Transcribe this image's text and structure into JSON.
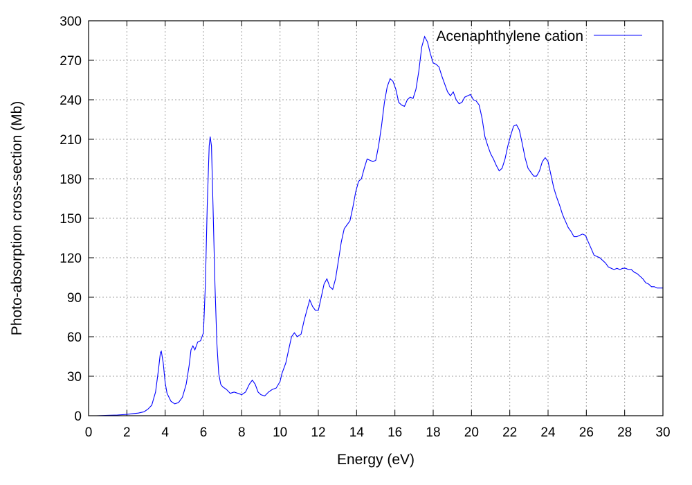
{
  "chart_data": {
    "type": "line",
    "title": "",
    "xlabel": "Energy (eV)",
    "ylabel": "Photo-absorption cross-section (Mb)",
    "xlim": [
      0,
      30
    ],
    "ylim": [
      0,
      300
    ],
    "x_ticks": [
      "0",
      "2",
      "4",
      "6",
      "8",
      "10",
      "12",
      "14",
      "16",
      "18",
      "20",
      "22",
      "24",
      "26",
      "28",
      "30"
    ],
    "y_ticks": [
      "0",
      "30",
      "60",
      "90",
      "120",
      "150",
      "180",
      "210",
      "240",
      "270",
      "300"
    ],
    "grid": true,
    "legend_position": "top-right",
    "series": [
      {
        "name": "Acenaphthylene cation",
        "color": "#0000ff",
        "points": [
          [
            0.4,
            0
          ],
          [
            1.0,
            0.3
          ],
          [
            1.5,
            0.5
          ],
          [
            2.0,
            1
          ],
          [
            2.3,
            1.5
          ],
          [
            2.6,
            2
          ],
          [
            2.9,
            3
          ],
          [
            3.1,
            5
          ],
          [
            3.3,
            8
          ],
          [
            3.5,
            18
          ],
          [
            3.65,
            35
          ],
          [
            3.75,
            48
          ],
          [
            3.8,
            49
          ],
          [
            3.9,
            40
          ],
          [
            4.0,
            25
          ],
          [
            4.1,
            17
          ],
          [
            4.3,
            11
          ],
          [
            4.5,
            9
          ],
          [
            4.7,
            10
          ],
          [
            4.9,
            14
          ],
          [
            5.1,
            24
          ],
          [
            5.25,
            38
          ],
          [
            5.35,
            50
          ],
          [
            5.45,
            53
          ],
          [
            5.55,
            50
          ],
          [
            5.7,
            56
          ],
          [
            5.85,
            57
          ],
          [
            6.0,
            63
          ],
          [
            6.1,
            100
          ],
          [
            6.2,
            160
          ],
          [
            6.3,
            205
          ],
          [
            6.35,
            212
          ],
          [
            6.42,
            205
          ],
          [
            6.5,
            160
          ],
          [
            6.6,
            100
          ],
          [
            6.7,
            55
          ],
          [
            6.8,
            32
          ],
          [
            6.9,
            24
          ],
          [
            7.0,
            22
          ],
          [
            7.2,
            20
          ],
          [
            7.4,
            17
          ],
          [
            7.6,
            18
          ],
          [
            7.8,
            17
          ],
          [
            8.0,
            16
          ],
          [
            8.2,
            18
          ],
          [
            8.4,
            24
          ],
          [
            8.55,
            27
          ],
          [
            8.7,
            24
          ],
          [
            8.85,
            18
          ],
          [
            9.0,
            16
          ],
          [
            9.2,
            15
          ],
          [
            9.4,
            18
          ],
          [
            9.6,
            20
          ],
          [
            9.8,
            21
          ],
          [
            10.0,
            26
          ],
          [
            10.1,
            32
          ],
          [
            10.3,
            40
          ],
          [
            10.45,
            50
          ],
          [
            10.6,
            60
          ],
          [
            10.75,
            63
          ],
          [
            10.9,
            60
          ],
          [
            11.1,
            62
          ],
          [
            11.25,
            72
          ],
          [
            11.4,
            80
          ],
          [
            11.55,
            88
          ],
          [
            11.7,
            83
          ],
          [
            11.85,
            80
          ],
          [
            12.0,
            80
          ],
          [
            12.15,
            90
          ],
          [
            12.3,
            100
          ],
          [
            12.45,
            104
          ],
          [
            12.6,
            98
          ],
          [
            12.75,
            96
          ],
          [
            12.9,
            104
          ],
          [
            13.05,
            118
          ],
          [
            13.2,
            132
          ],
          [
            13.35,
            142
          ],
          [
            13.5,
            145
          ],
          [
            13.65,
            148
          ],
          [
            13.8,
            158
          ],
          [
            13.95,
            170
          ],
          [
            14.1,
            178
          ],
          [
            14.25,
            180
          ],
          [
            14.4,
            188
          ],
          [
            14.55,
            195
          ],
          [
            14.7,
            194
          ],
          [
            14.85,
            193
          ],
          [
            15.0,
            194
          ],
          [
            15.15,
            205
          ],
          [
            15.3,
            220
          ],
          [
            15.45,
            238
          ],
          [
            15.6,
            250
          ],
          [
            15.75,
            256
          ],
          [
            15.9,
            254
          ],
          [
            16.05,
            248
          ],
          [
            16.2,
            238
          ],
          [
            16.35,
            236
          ],
          [
            16.5,
            235
          ],
          [
            16.65,
            240
          ],
          [
            16.8,
            242
          ],
          [
            16.95,
            241
          ],
          [
            17.1,
            248
          ],
          [
            17.25,
            262
          ],
          [
            17.4,
            280
          ],
          [
            17.55,
            288
          ],
          [
            17.7,
            284
          ],
          [
            17.85,
            275
          ],
          [
            18.0,
            268
          ],
          [
            18.15,
            267
          ],
          [
            18.3,
            265
          ],
          [
            18.45,
            258
          ],
          [
            18.6,
            252
          ],
          [
            18.75,
            246
          ],
          [
            18.9,
            243
          ],
          [
            19.05,
            246
          ],
          [
            19.2,
            240
          ],
          [
            19.35,
            237
          ],
          [
            19.5,
            238
          ],
          [
            19.65,
            242
          ],
          [
            19.8,
            243
          ],
          [
            19.95,
            244
          ],
          [
            20.1,
            240
          ],
          [
            20.25,
            239
          ],
          [
            20.4,
            236
          ],
          [
            20.55,
            226
          ],
          [
            20.7,
            212
          ],
          [
            20.85,
            205
          ],
          [
            21.0,
            199
          ],
          [
            21.15,
            195
          ],
          [
            21.3,
            190
          ],
          [
            21.45,
            186
          ],
          [
            21.6,
            188
          ],
          [
            21.75,
            195
          ],
          [
            21.9,
            205
          ],
          [
            22.05,
            213
          ],
          [
            22.2,
            220
          ],
          [
            22.35,
            221
          ],
          [
            22.5,
            217
          ],
          [
            22.65,
            207
          ],
          [
            22.8,
            196
          ],
          [
            22.95,
            188
          ],
          [
            23.1,
            185
          ],
          [
            23.25,
            182
          ],
          [
            23.4,
            182
          ],
          [
            23.55,
            186
          ],
          [
            23.7,
            193
          ],
          [
            23.85,
            196
          ],
          [
            24.0,
            193
          ],
          [
            24.15,
            183
          ],
          [
            24.3,
            173
          ],
          [
            24.45,
            166
          ],
          [
            24.6,
            160
          ],
          [
            24.75,
            153
          ],
          [
            24.9,
            148
          ],
          [
            25.05,
            143
          ],
          [
            25.2,
            140
          ],
          [
            25.35,
            136
          ],
          [
            25.5,
            136
          ],
          [
            25.65,
            137
          ],
          [
            25.8,
            138
          ],
          [
            25.95,
            137
          ],
          [
            26.1,
            132
          ],
          [
            26.25,
            127
          ],
          [
            26.4,
            122
          ],
          [
            26.55,
            121
          ],
          [
            26.7,
            120
          ],
          [
            26.85,
            118
          ],
          [
            27.0,
            116
          ],
          [
            27.15,
            113
          ],
          [
            27.3,
            112
          ],
          [
            27.45,
            111
          ],
          [
            27.6,
            112
          ],
          [
            27.75,
            111
          ],
          [
            27.9,
            112
          ],
          [
            28.05,
            112
          ],
          [
            28.2,
            111
          ],
          [
            28.35,
            111
          ],
          [
            28.5,
            109
          ],
          [
            28.65,
            108
          ],
          [
            28.8,
            106
          ],
          [
            28.95,
            104
          ],
          [
            29.1,
            101
          ],
          [
            29.25,
            100
          ],
          [
            29.4,
            98
          ],
          [
            29.55,
            98
          ],
          [
            29.7,
            97
          ],
          [
            29.85,
            97
          ],
          [
            30.0,
            97
          ]
        ]
      }
    ]
  }
}
